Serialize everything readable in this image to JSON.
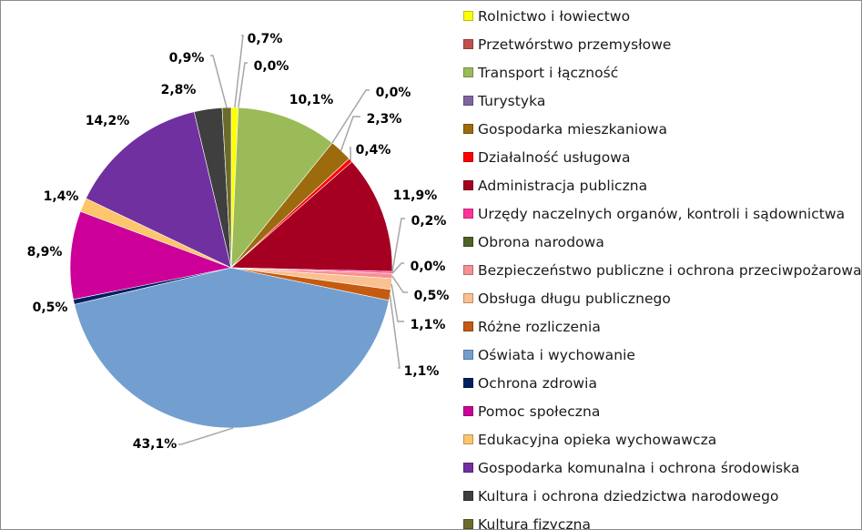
{
  "chart_data": {
    "type": "pie",
    "title": "",
    "legend_position": "right",
    "slices": [
      {
        "label": "Rolnictwo i łowiectwo",
        "value": 0.7,
        "value_label": "0,7%",
        "color": "#FFFF00"
      },
      {
        "label": "Przetwórstwo przemysłowe",
        "value": 0.0,
        "value_label": "0,0%",
        "color": "#C0504D"
      },
      {
        "label": "Transport i łączność",
        "value": 10.1,
        "value_label": "10,1%",
        "color": "#9BBB59"
      },
      {
        "label": "Turystyka",
        "value": 0.0,
        "value_label": "0,0%",
        "color": "#8064A2"
      },
      {
        "label": "Gospodarka mieszkaniowa",
        "value": 2.3,
        "value_label": "2,3%",
        "color": "#9C6B0E"
      },
      {
        "label": "Działalność usługowa",
        "value": 0.4,
        "value_label": "0,4%",
        "color": "#FF0000"
      },
      {
        "label": "Administracja publiczna",
        "value": 11.9,
        "value_label": "11,9%",
        "color": "#A50021"
      },
      {
        "label": "Urzędy naczelnych organów, kontroli i sądownictwa",
        "value": 0.2,
        "value_label": "0,2%",
        "color": "#FF3399"
      },
      {
        "label": "Obrona narodowa",
        "value": 0.0,
        "value_label": "0,0%",
        "color": "#4F6228"
      },
      {
        "label": "Bezpieczeństwo publiczne i ochrona przeciwpożarowa",
        "value": 0.5,
        "value_label": "0,5%",
        "color": "#F79191"
      },
      {
        "label": "Obsługa długu publicznego",
        "value": 1.1,
        "value_label": "1,1%",
        "color": "#FAC090"
      },
      {
        "label": "Różne rozliczenia",
        "value": 1.1,
        "value_label": "1,1%",
        "color": "#C55A11"
      },
      {
        "label": "Oświata i wychowanie",
        "value": 43.1,
        "value_label": "43,1%",
        "color": "#729FCF"
      },
      {
        "label": "Ochrona zdrowia",
        "value": 0.5,
        "value_label": "0,5%",
        "color": "#002060"
      },
      {
        "label": "Pomoc społeczna",
        "value": 8.9,
        "value_label": "8,9%",
        "color": "#CC0099"
      },
      {
        "label": "Edukacyjna opieka wychowawcza",
        "value": 1.4,
        "value_label": "1,4%",
        "color": "#FFC56A"
      },
      {
        "label": "Gospodarka komunalna i ochrona środowiska",
        "value": 14.2,
        "value_label": "14,2%",
        "color": "#7030A0"
      },
      {
        "label": "Kultura i ochrona dziedzictwa narodowego",
        "value": 2.8,
        "value_label": "2,8%",
        "color": "#3F3F3F"
      },
      {
        "label": "Kultura fizyczna",
        "value": 0.9,
        "value_label": "0,9%",
        "color": "#6B6B2B"
      }
    ]
  }
}
